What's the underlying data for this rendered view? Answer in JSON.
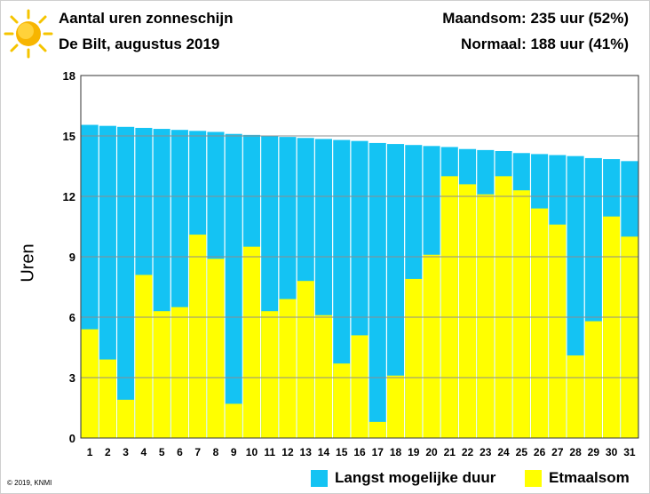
{
  "header": {
    "title": "Aantal uren zonneschijn",
    "subtitle": "De Bilt, augustus 2019",
    "stat_month": "Maandsom: 235 uur (52%)",
    "stat_normal": "Normaal: 188 uur (41%)"
  },
  "footer": {
    "copyright": "© 2019, KNMI"
  },
  "icons": {
    "logo": "sun-icon"
  },
  "colors": {
    "max_duration": "#14c3f3",
    "daily_sum": "#ffff00",
    "grid": "#9a9a9a"
  },
  "chart_data": {
    "type": "bar",
    "ylabel": "Uren",
    "ylim": [
      0,
      18
    ],
    "yticks": [
      "0",
      "3",
      "6",
      "9",
      "12",
      "15",
      "18"
    ],
    "categories": [
      "1",
      "2",
      "3",
      "4",
      "5",
      "6",
      "7",
      "8",
      "9",
      "10",
      "11",
      "12",
      "13",
      "14",
      "15",
      "16",
      "17",
      "18",
      "19",
      "20",
      "21",
      "22",
      "23",
      "24",
      "25",
      "26",
      "27",
      "28",
      "29",
      "30",
      "31"
    ],
    "series": [
      {
        "name": "Langst mogelijke duur",
        "color": "#14c3f3",
        "values": [
          15.55,
          15.5,
          15.45,
          15.4,
          15.35,
          15.3,
          15.25,
          15.2,
          15.1,
          15.05,
          15.0,
          14.95,
          14.9,
          14.85,
          14.8,
          14.75,
          14.65,
          14.6,
          14.55,
          14.5,
          14.45,
          14.35,
          14.3,
          14.25,
          14.15,
          14.1,
          14.05,
          14.0,
          13.9,
          13.85,
          13.75
        ]
      },
      {
        "name": "Etmaalsom",
        "color": "#ffff00",
        "values": [
          5.4,
          3.9,
          1.9,
          8.1,
          6.3,
          6.5,
          10.1,
          8.9,
          1.7,
          9.5,
          6.3,
          6.9,
          7.8,
          6.1,
          3.7,
          5.1,
          0.8,
          3.1,
          7.9,
          9.1,
          13.0,
          12.6,
          12.1,
          13.0,
          12.3,
          11.4,
          10.6,
          4.1,
          5.8,
          11.0,
          10.0
        ]
      }
    ],
    "grid": true,
    "legend": "bottom"
  }
}
